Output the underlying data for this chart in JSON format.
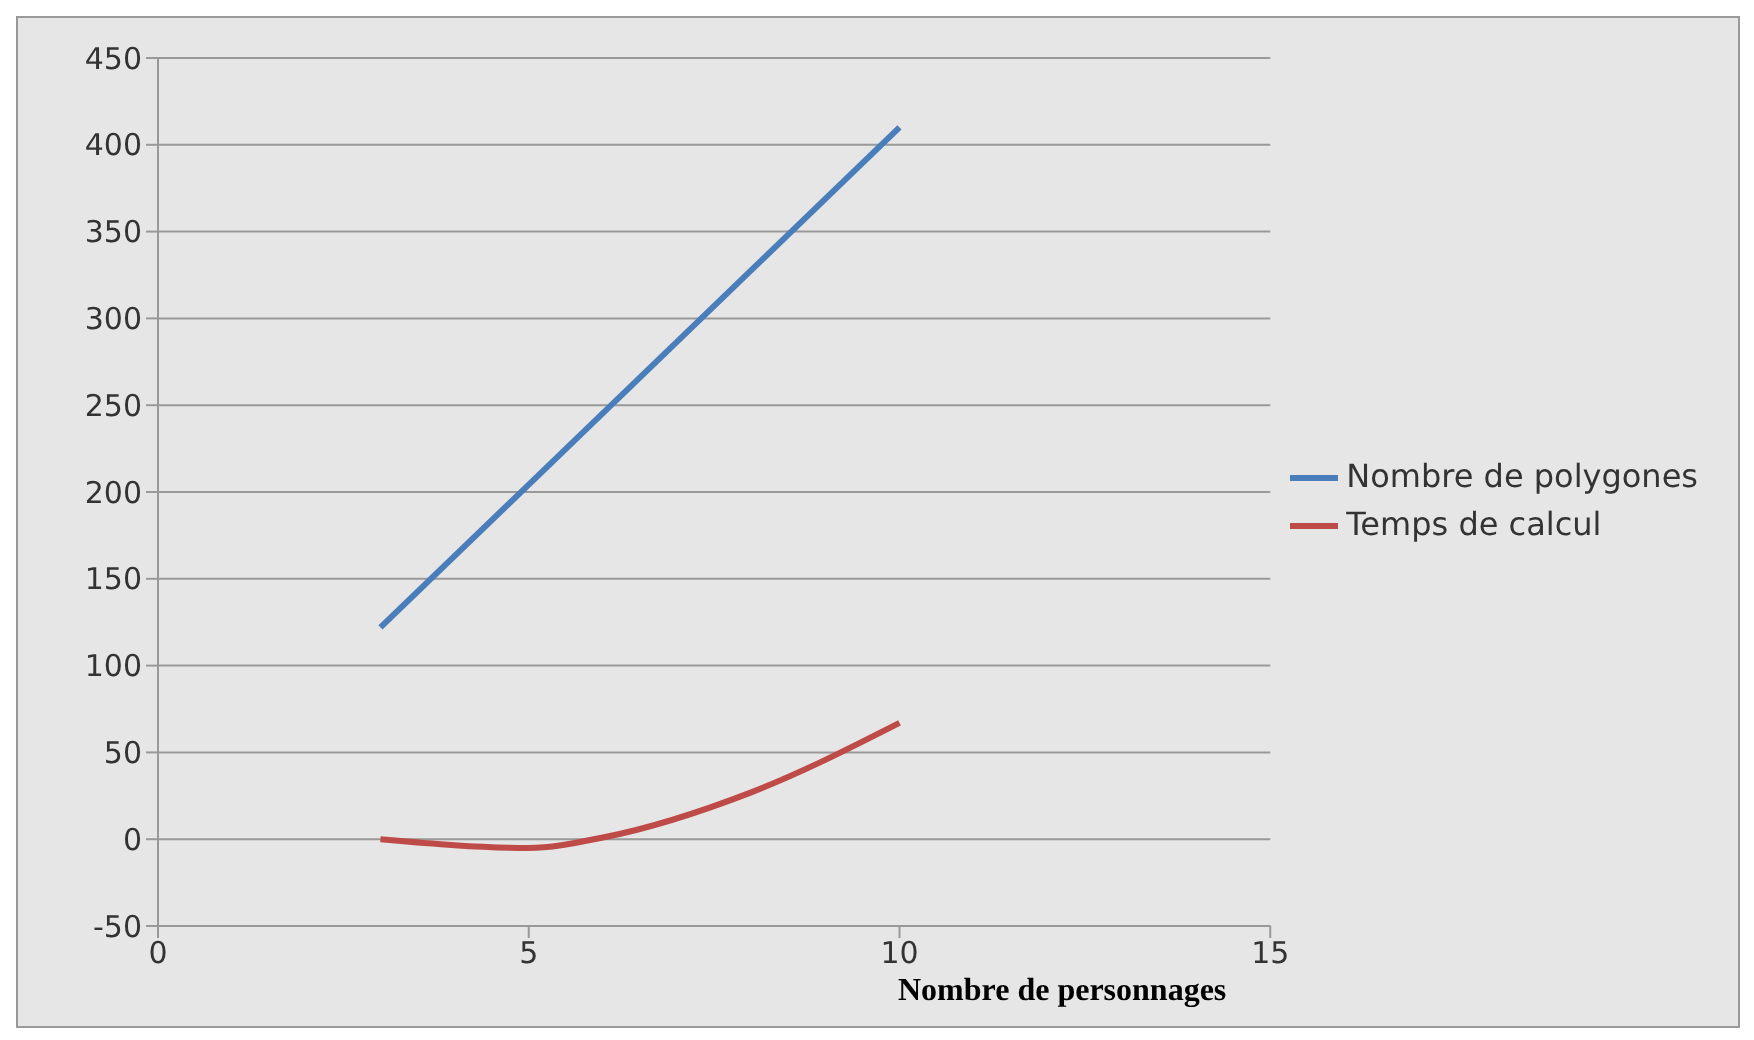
{
  "chart_data": {
    "type": "line",
    "xlabel": "Nombre de personnages",
    "xlim": [
      0,
      15
    ],
    "xticks": [
      0,
      5,
      10,
      15
    ],
    "ylim": [
      -50,
      450
    ],
    "yticks": [
      -50,
      0,
      50,
      100,
      150,
      200,
      250,
      300,
      350,
      400,
      450
    ],
    "grid": "y",
    "legend": "right",
    "marker": "none",
    "line_style": "solid",
    "series": [
      {
        "name": "Nombre de polygones",
        "color": "#4a7ebb",
        "x": [
          3,
          10
        ],
        "values": [
          122,
          410
        ]
      },
      {
        "name": "Temps de calcul",
        "color": "#be4b48",
        "x": [
          3,
          5,
          6,
          8,
          10
        ],
        "values": [
          0,
          -5,
          1,
          27,
          67
        ]
      }
    ]
  }
}
